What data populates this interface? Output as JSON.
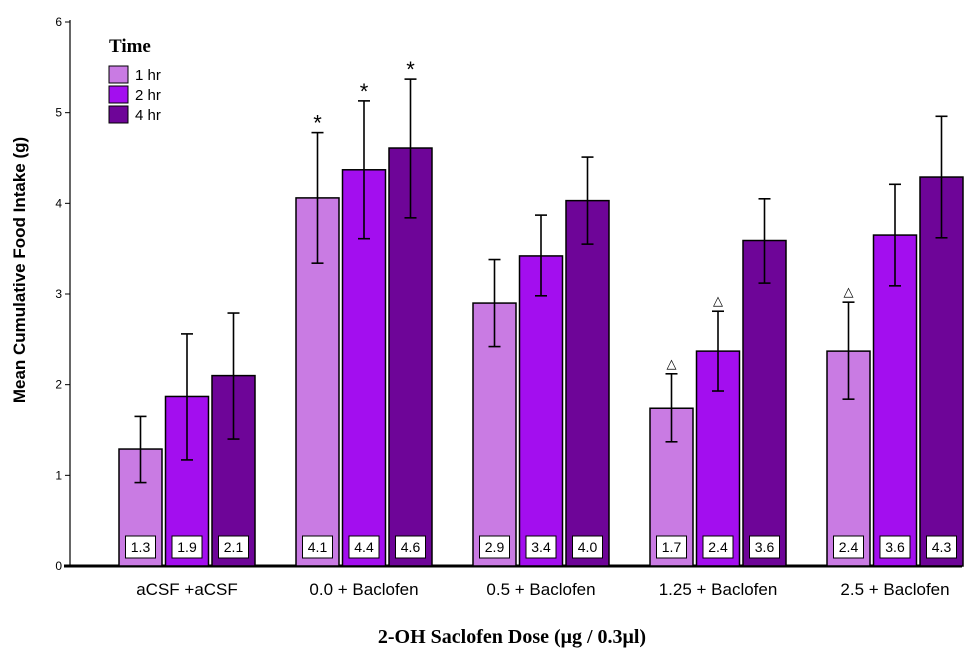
{
  "chart_data": {
    "type": "bar",
    "ylabel": "Mean Cumulative Food Intake (g)",
    "xlabel": "2-OH Saclofen Dose (μg / 0.3μl)",
    "ylim": [
      0,
      6
    ],
    "yticks": [
      "0",
      "1",
      "2",
      "3",
      "4",
      "5",
      "6"
    ],
    "grid": false,
    "legend": {
      "title": "Time",
      "placement": "top-left"
    },
    "categories": [
      "aCSF +aCSF",
      "0.0 + Baclofen",
      "0.5 + Baclofen",
      "1.25 + Baclofen",
      "2.5 + Baclofen"
    ],
    "series": [
      {
        "name": "1 hr",
        "color": "#c97be3",
        "values": [
          1.29,
          4.06,
          2.9,
          1.74,
          2.37
        ],
        "error_low": [
          0.92,
          3.34,
          2.42,
          1.37,
          1.84
        ],
        "error_high": [
          1.65,
          4.78,
          3.38,
          2.12,
          2.91
        ],
        "labels": [
          "1.3",
          "4.1",
          "2.9",
          "1.7",
          "2.4"
        ],
        "markers": [
          "",
          "*",
          "",
          "△",
          "△"
        ]
      },
      {
        "name": "2 hr",
        "color": "#a30eef",
        "values": [
          1.87,
          4.37,
          3.42,
          2.37,
          3.65
        ],
        "error_low": [
          1.17,
          3.61,
          2.98,
          1.93,
          3.09
        ],
        "error_high": [
          2.56,
          5.13,
          3.87,
          2.81,
          4.21
        ],
        "labels": [
          "1.9",
          "4.4",
          "3.4",
          "2.4",
          "3.6"
        ],
        "markers": [
          "",
          "*",
          "",
          "△",
          ""
        ]
      },
      {
        "name": "4 hr",
        "color": "#6e0598",
        "values": [
          2.1,
          4.61,
          4.03,
          3.59,
          4.29
        ],
        "error_low": [
          1.4,
          3.84,
          3.55,
          3.12,
          3.62
        ],
        "error_high": [
          2.79,
          5.37,
          4.51,
          4.05,
          4.96
        ],
        "labels": [
          "2.1",
          "4.6",
          "4.0",
          "3.6",
          "4.3"
        ],
        "markers": [
          "",
          "*",
          "",
          "",
          ""
        ]
      }
    ]
  }
}
